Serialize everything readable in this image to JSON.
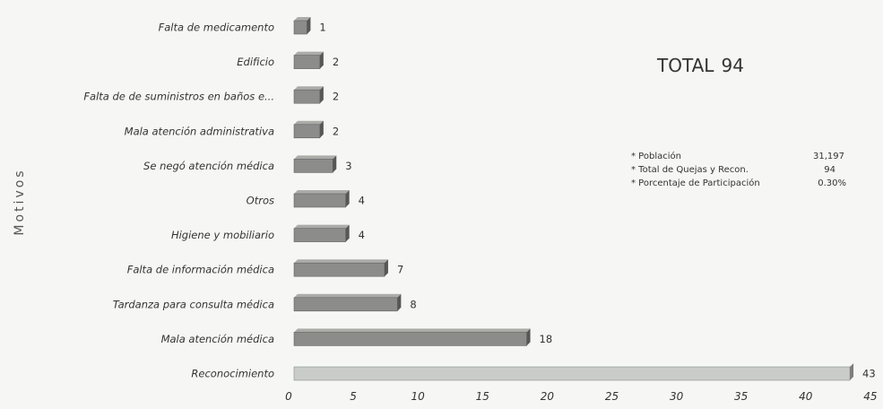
{
  "chart_data": {
    "type": "bar",
    "orientation": "horizontal",
    "ylabel": "Motivos",
    "xlabel": "",
    "xlim": [
      0,
      45
    ],
    "xticks": [
      0,
      5,
      10,
      15,
      20,
      25,
      30,
      35,
      40,
      45
    ],
    "grid": false,
    "categories": [
      "Falta de medicamento",
      "Edificio",
      "Falta de de suministros en baños e...",
      "Mala atención administrativa",
      "Se negó atención médica",
      "Otros",
      "Higiene y mobiliario",
      "Falta de información médica",
      "Tardanza para consulta médica",
      "Mala atención médica",
      "Reconocimiento"
    ],
    "values": [
      1,
      2,
      2,
      2,
      3,
      4,
      4,
      7,
      8,
      18,
      43
    ],
    "bar_colors": {
      "default": "#8c8c8a",
      "highlight": "#c9ccc9"
    },
    "highlight_index": 10,
    "annotations": {
      "total_label": "TOTAL",
      "total_value": "94",
      "info": [
        {
          "label": "* Población",
          "value": "31,197"
        },
        {
          "label": "* Total de Quejas y Recon.",
          "value": "94"
        },
        {
          "label": "* Porcentaje de Participación",
          "value": "0.30%"
        }
      ]
    }
  }
}
